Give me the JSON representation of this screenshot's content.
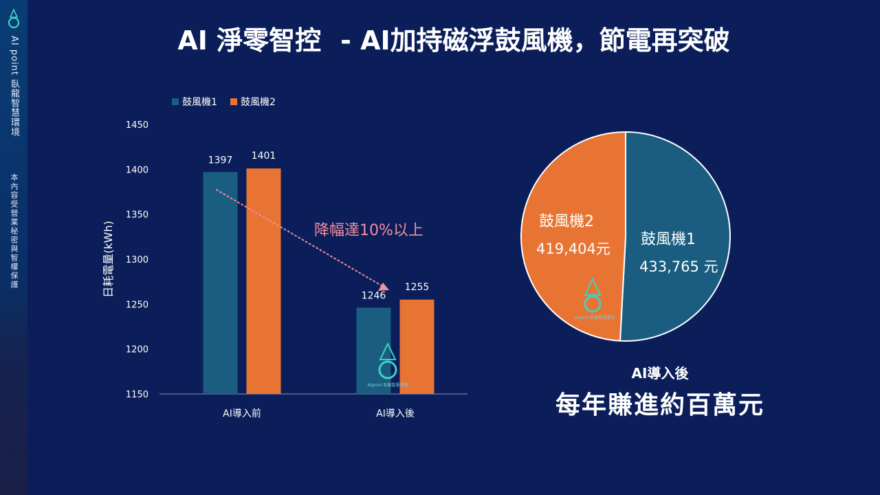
{
  "sidebar": {
    "brand": "AI point 臥龍智慧環境",
    "note": "本內容受營業秘密與智權保護"
  },
  "page": {
    "title_a": "AI 淨零智控",
    "title_b": "- AI加持磁浮鼓風機，節電再突破"
  },
  "colors": {
    "background": "#0b1e5a",
    "series1": "#1a5d80",
    "series2": "#e87434",
    "annotation": "#f28fa0"
  },
  "chart_data": [
    {
      "type": "bar",
      "categories": [
        "AI導入前",
        "AI導入後"
      ],
      "series": [
        {
          "name": "鼓風機1",
          "values": [
            1397,
            1246
          ]
        },
        {
          "name": "鼓風機2",
          "values": [
            1401,
            1255
          ]
        }
      ],
      "ylabel": "日耗電量(kWh)",
      "ylim": [
        1150,
        1450
      ],
      "yticks": [
        1150,
        1200,
        1250,
        1300,
        1350,
        1400,
        1450
      ],
      "legend": "top-left",
      "grid": false,
      "annotation": "降幅達10%以上"
    },
    {
      "type": "pie",
      "slices": [
        {
          "label": "鼓風機1",
          "value": 433765,
          "value_label": "433,765 元"
        },
        {
          "label": "鼓風機2",
          "value": 419404,
          "value_label": "419,404元"
        }
      ]
    }
  ],
  "summary": {
    "caption": "AI導入後",
    "headline": "每年賺進約百萬元"
  },
  "watermark": "AIpoint 臥龍智慧環境"
}
